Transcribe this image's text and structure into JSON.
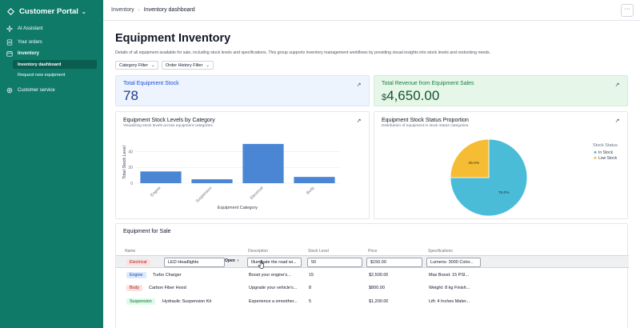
{
  "sidebar": {
    "brand": "Customer Portal",
    "items": [
      {
        "label": "AI Assistant"
      },
      {
        "label": "Your orders"
      },
      {
        "label": "Inventory"
      },
      {
        "label": "Customer service"
      }
    ],
    "sub_items": [
      {
        "label": "Inventory dashboard",
        "active": true
      },
      {
        "label": "Request new equipment",
        "active": false
      }
    ]
  },
  "breadcrumb": {
    "root": "Inventory",
    "current": "Inventory dashboard"
  },
  "header": {
    "more": "···"
  },
  "page": {
    "title": "Equipment Inventory",
    "description": "Details of all equipment available for sale, including stock levels and specifications. This group supports inventory management workflows by providing visual insights into stock levels and restocking needs."
  },
  "filters": {
    "category": "Category Filter",
    "order_history": "Order History Filter"
  },
  "kpis": {
    "stock_label": "Total Equipment Stock",
    "stock_value": "78",
    "revenue_label": "Total Revenue from Equipment Sales",
    "revenue_currency": "$",
    "revenue_value": "4,650.00"
  },
  "colors": {
    "sidebar": "#0f7a68",
    "bar": "#4a86d4",
    "pie_in_stock": "#4bbcd8",
    "pie_low_stock": "#f6bd34"
  },
  "chart_data": [
    {
      "type": "bar",
      "title": "Equipment Stock Levels by Category",
      "subtitle": "Visualizing stock levels across equipment categories.",
      "xlabel": "Equipment Category",
      "ylabel": "Total Stock Level",
      "categories": [
        "Engine",
        "Suspension",
        "Electrical",
        "Body"
      ],
      "values": [
        15,
        5,
        50,
        8
      ],
      "ylim": [
        0,
        55
      ],
      "yticks": [
        "0",
        "20",
        "40"
      ],
      "grid": true
    },
    {
      "type": "pie",
      "title": "Equipment Stock Status Proportion",
      "subtitle": "Distribution of equipment in stock status categories.",
      "legend_title": "Stock Status",
      "legend_position": "right",
      "slices": [
        {
          "name": "In Stock",
          "value": 75.0,
          "label": "75.0%"
        },
        {
          "name": "Low Stock",
          "value": 25.0,
          "label": "25.0%"
        }
      ]
    }
  ],
  "table": {
    "title": "Equipment for Sale",
    "columns": [
      "Name",
      "Description",
      "Stock Level",
      "Price",
      "Specifications"
    ],
    "open_label": "Open",
    "rows": [
      {
        "category": "Electrical",
        "name": "LED Headlights",
        "description": "Illuminate the road wi...",
        "stock": "50",
        "price": "$150.00",
        "specs": "Lumens: 3000 Color..."
      },
      {
        "category": "Engine",
        "name": "Turbo Charger",
        "description": "Boost your engine's...",
        "stock": "15",
        "price": "$2,500.00",
        "specs": "Max Boost: 15 PSI..."
      },
      {
        "category": "Body",
        "name": "Carbon Fiber Hood",
        "description": "Upgrade your vehicle's...",
        "stock": "8",
        "price": "$800.00",
        "specs": "Weight: 8 kg Finish..."
      },
      {
        "category": "Suspension",
        "name": "Hydraulic Suspension Kit",
        "description": "Experience a smoother...",
        "stock": "5",
        "price": "$1,200.00",
        "specs": "Lift: 4 Inches Mater..."
      }
    ]
  }
}
